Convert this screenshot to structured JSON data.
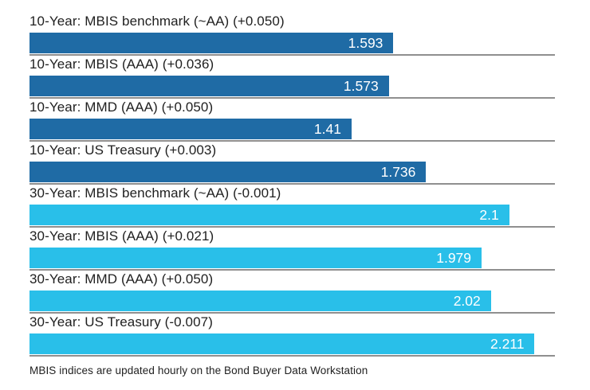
{
  "colors": {
    "bar_10yr": "#1f6ba5",
    "bar_30yr": "#29bfe9",
    "separator": "#8f8f8f",
    "label_text": "#1f1f1f",
    "value_text": "#ffffff",
    "background": "#ffffff"
  },
  "chart_data": {
    "type": "bar",
    "orientation": "horizontal",
    "title": "",
    "xlabel": "",
    "ylabel": "",
    "xlim": [
      0,
      2.3
    ],
    "grid": false,
    "legend": "none",
    "categories": [
      "10-Year: MBIS benchmark (~AA) (+0.050)",
      "10-Year: MBIS (AAA) (+0.036)",
      "10-Year: MMD (AAA) (+0.050)",
      "10-Year: US Treasury (+0.003)",
      "30-Year: MBIS benchmark (~AA) (-0.001)",
      "30-Year: MBIS (AAA) (+0.021)",
      "30-Year: MMD (AAA) (+0.050)",
      "30-Year: US Treasury (-0.007)"
    ],
    "values": [
      1.593,
      1.573,
      1.41,
      1.736,
      2.1,
      1.979,
      2.02,
      2.211
    ],
    "rows": [
      {
        "label": "10-Year: MBIS benchmark (~AA) (+0.050)",
        "term": "10-Year",
        "index_name": "MBIS benchmark (~AA)",
        "change": "+0.050",
        "value": 1.593,
        "value_label": "1.593",
        "color": "#1f6ba5"
      },
      {
        "label": "10-Year: MBIS (AAA) (+0.036)",
        "term": "10-Year",
        "index_name": "MBIS (AAA)",
        "change": "+0.036",
        "value": 1.573,
        "value_label": "1.573",
        "color": "#1f6ba5"
      },
      {
        "label": "10-Year: MMD (AAA) (+0.050)",
        "term": "10-Year",
        "index_name": "MMD (AAA)",
        "change": "+0.050",
        "value": 1.41,
        "value_label": "1.41",
        "color": "#1f6ba5"
      },
      {
        "label": "10-Year: US Treasury (+0.003)",
        "term": "10-Year",
        "index_name": "US Treasury",
        "change": "+0.003",
        "value": 1.736,
        "value_label": "1.736",
        "color": "#1f6ba5"
      },
      {
        "label": "30-Year: MBIS benchmark (~AA) (-0.001)",
        "term": "30-Year",
        "index_name": "MBIS benchmark (~AA)",
        "change": "-0.001",
        "value": 2.1,
        "value_label": "2.1",
        "color": "#29bfe9"
      },
      {
        "label": "30-Year: MBIS (AAA) (+0.021)",
        "term": "30-Year",
        "index_name": "MBIS (AAA)",
        "change": "+0.021",
        "value": 1.979,
        "value_label": "1.979",
        "color": "#29bfe9"
      },
      {
        "label": "30-Year: MMD (AAA) (+0.050)",
        "term": "30-Year",
        "index_name": "MMD (AAA)",
        "change": "+0.050",
        "value": 2.02,
        "value_label": "2.02",
        "color": "#29bfe9"
      },
      {
        "label": "30-Year: US Treasury (-0.007)",
        "term": "30-Year",
        "index_name": "US Treasury",
        "change": "-0.007",
        "value": 2.211,
        "value_label": "2.211",
        "color": "#29bfe9"
      }
    ],
    "footnote": "MBIS indices are updated hourly on the Bond Buyer Data Workstation"
  }
}
